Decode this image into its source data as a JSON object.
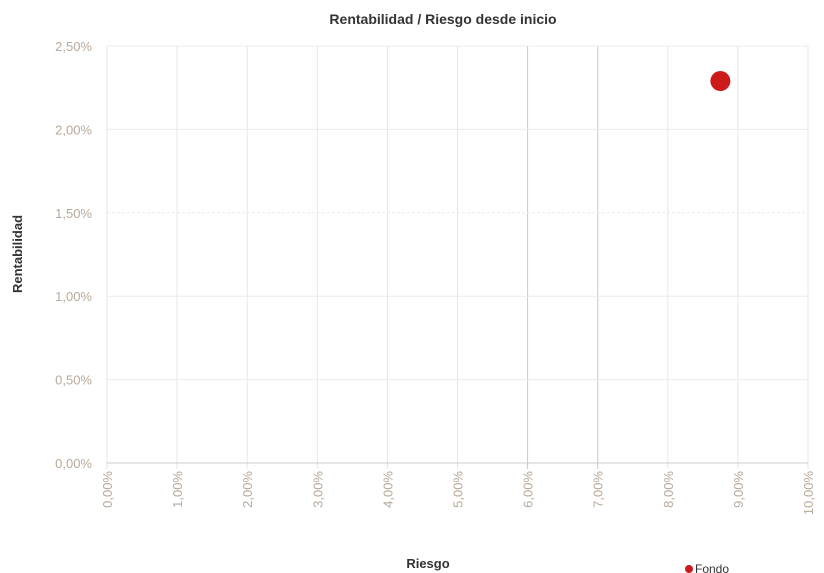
{
  "chart_data": {
    "type": "scatter",
    "title": "Rentabilidad / Riesgo desde inicio",
    "xlabel": "Riesgo",
    "ylabel": "Rentabilidad",
    "xlim": [
      0,
      10
    ],
    "ylim": [
      0,
      2.5
    ],
    "x_ticks": [
      "0,00%",
      "1,00%",
      "2,00%",
      "3,00%",
      "4,00%",
      "5,00%",
      "6,00%",
      "7,00%",
      "8,00%",
      "9,00%",
      "10,00%"
    ],
    "y_ticks": [
      "0,00%",
      "0,50%",
      "1,00%",
      "1,50%",
      "2,00%",
      "2,50%"
    ],
    "grid": true,
    "legend_position": "bottom-right",
    "series": [
      {
        "name": "Fondo",
        "color": "#cc1a1a",
        "points": [
          {
            "x": 8.75,
            "y": 2.29
          }
        ]
      }
    ]
  }
}
